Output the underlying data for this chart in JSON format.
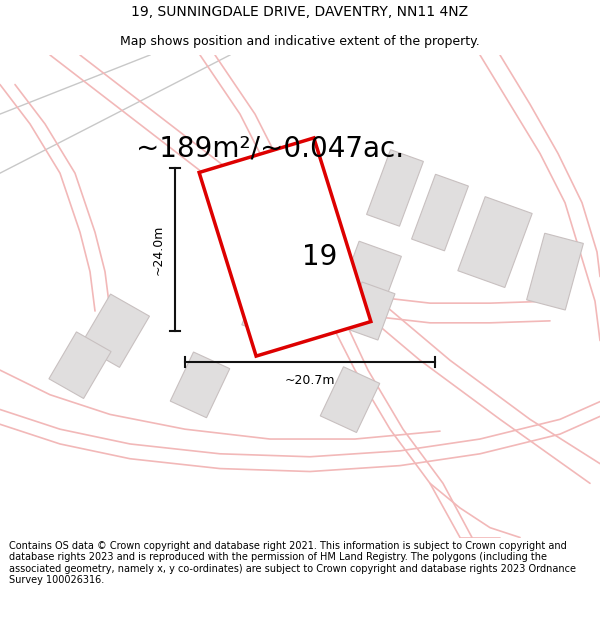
{
  "title_line1": "19, SUNNINGDALE DRIVE, DAVENTRY, NN11 4NZ",
  "title_line2": "Map shows position and indicative extent of the property.",
  "area_text": "~189m²/~0.047ac.",
  "label_number": "19",
  "dim_height": "~24.0m",
  "dim_width": "~20.7m",
  "footer_text": "Contains OS data © Crown copyright and database right 2021. This information is subject to Crown copyright and database rights 2023 and is reproduced with the permission of HM Land Registry. The polygons (including the associated geometry, namely x, y co-ordinates) are subject to Crown copyright and database rights 2023 Ordnance Survey 100026316.",
  "bg_color": "#ffffff",
  "map_bg_color": "#faf8f8",
  "road_color": "#f2b8b8",
  "road_color2": "#e8d0d0",
  "building_color": "#e0dede",
  "building_edge_color": "#c8c0c0",
  "property_color": "#ffffff",
  "property_edge_color": "#dd0000",
  "dim_line_color": "#111111",
  "title_fontsize": 10,
  "subtitle_fontsize": 9,
  "area_fontsize": 20,
  "label_fontsize": 20,
  "footer_fontsize": 7.0
}
